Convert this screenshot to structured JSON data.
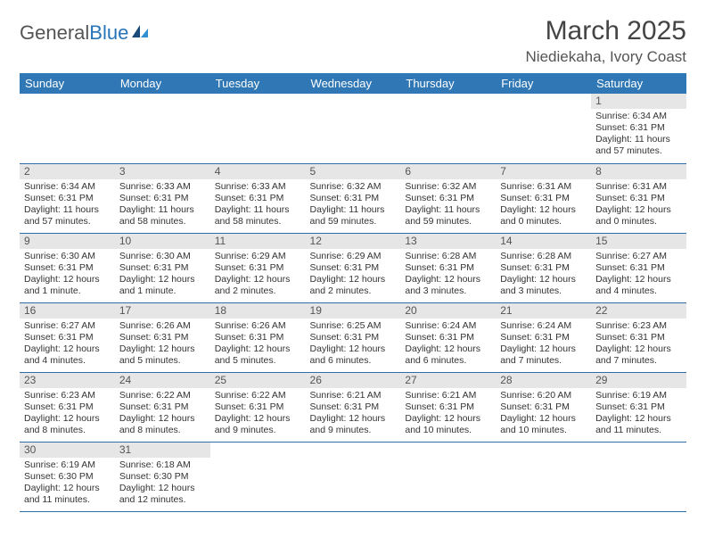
{
  "logo": {
    "text1": "General",
    "text2": "Blue"
  },
  "title": "March 2025",
  "location": "Niediekaha, Ivory Coast",
  "colors": {
    "header_bg": "#2f77b5",
    "header_text": "#ffffff",
    "daynum_bg": "#e6e6e6",
    "border": "#2f6fa8",
    "logo_blue": "#2874b8"
  },
  "weekdays": [
    "Sunday",
    "Monday",
    "Tuesday",
    "Wednesday",
    "Thursday",
    "Friday",
    "Saturday"
  ],
  "weeks": [
    [
      {
        "n": "",
        "empty": true
      },
      {
        "n": "",
        "empty": true
      },
      {
        "n": "",
        "empty": true
      },
      {
        "n": "",
        "empty": true
      },
      {
        "n": "",
        "empty": true
      },
      {
        "n": "",
        "empty": true
      },
      {
        "n": "1",
        "sr": "Sunrise: 6:34 AM",
        "ss": "Sunset: 6:31 PM",
        "dl": "Daylight: 11 hours and 57 minutes."
      }
    ],
    [
      {
        "n": "2",
        "sr": "Sunrise: 6:34 AM",
        "ss": "Sunset: 6:31 PM",
        "dl": "Daylight: 11 hours and 57 minutes."
      },
      {
        "n": "3",
        "sr": "Sunrise: 6:33 AM",
        "ss": "Sunset: 6:31 PM",
        "dl": "Daylight: 11 hours and 58 minutes."
      },
      {
        "n": "4",
        "sr": "Sunrise: 6:33 AM",
        "ss": "Sunset: 6:31 PM",
        "dl": "Daylight: 11 hours and 58 minutes."
      },
      {
        "n": "5",
        "sr": "Sunrise: 6:32 AM",
        "ss": "Sunset: 6:31 PM",
        "dl": "Daylight: 11 hours and 59 minutes."
      },
      {
        "n": "6",
        "sr": "Sunrise: 6:32 AM",
        "ss": "Sunset: 6:31 PM",
        "dl": "Daylight: 11 hours and 59 minutes."
      },
      {
        "n": "7",
        "sr": "Sunrise: 6:31 AM",
        "ss": "Sunset: 6:31 PM",
        "dl": "Daylight: 12 hours and 0 minutes."
      },
      {
        "n": "8",
        "sr": "Sunrise: 6:31 AM",
        "ss": "Sunset: 6:31 PM",
        "dl": "Daylight: 12 hours and 0 minutes."
      }
    ],
    [
      {
        "n": "9",
        "sr": "Sunrise: 6:30 AM",
        "ss": "Sunset: 6:31 PM",
        "dl": "Daylight: 12 hours and 1 minute."
      },
      {
        "n": "10",
        "sr": "Sunrise: 6:30 AM",
        "ss": "Sunset: 6:31 PM",
        "dl": "Daylight: 12 hours and 1 minute."
      },
      {
        "n": "11",
        "sr": "Sunrise: 6:29 AM",
        "ss": "Sunset: 6:31 PM",
        "dl": "Daylight: 12 hours and 2 minutes."
      },
      {
        "n": "12",
        "sr": "Sunrise: 6:29 AM",
        "ss": "Sunset: 6:31 PM",
        "dl": "Daylight: 12 hours and 2 minutes."
      },
      {
        "n": "13",
        "sr": "Sunrise: 6:28 AM",
        "ss": "Sunset: 6:31 PM",
        "dl": "Daylight: 12 hours and 3 minutes."
      },
      {
        "n": "14",
        "sr": "Sunrise: 6:28 AM",
        "ss": "Sunset: 6:31 PM",
        "dl": "Daylight: 12 hours and 3 minutes."
      },
      {
        "n": "15",
        "sr": "Sunrise: 6:27 AM",
        "ss": "Sunset: 6:31 PM",
        "dl": "Daylight: 12 hours and 4 minutes."
      }
    ],
    [
      {
        "n": "16",
        "sr": "Sunrise: 6:27 AM",
        "ss": "Sunset: 6:31 PM",
        "dl": "Daylight: 12 hours and 4 minutes."
      },
      {
        "n": "17",
        "sr": "Sunrise: 6:26 AM",
        "ss": "Sunset: 6:31 PM",
        "dl": "Daylight: 12 hours and 5 minutes."
      },
      {
        "n": "18",
        "sr": "Sunrise: 6:26 AM",
        "ss": "Sunset: 6:31 PM",
        "dl": "Daylight: 12 hours and 5 minutes."
      },
      {
        "n": "19",
        "sr": "Sunrise: 6:25 AM",
        "ss": "Sunset: 6:31 PM",
        "dl": "Daylight: 12 hours and 6 minutes."
      },
      {
        "n": "20",
        "sr": "Sunrise: 6:24 AM",
        "ss": "Sunset: 6:31 PM",
        "dl": "Daylight: 12 hours and 6 minutes."
      },
      {
        "n": "21",
        "sr": "Sunrise: 6:24 AM",
        "ss": "Sunset: 6:31 PM",
        "dl": "Daylight: 12 hours and 7 minutes."
      },
      {
        "n": "22",
        "sr": "Sunrise: 6:23 AM",
        "ss": "Sunset: 6:31 PM",
        "dl": "Daylight: 12 hours and 7 minutes."
      }
    ],
    [
      {
        "n": "23",
        "sr": "Sunrise: 6:23 AM",
        "ss": "Sunset: 6:31 PM",
        "dl": "Daylight: 12 hours and 8 minutes."
      },
      {
        "n": "24",
        "sr": "Sunrise: 6:22 AM",
        "ss": "Sunset: 6:31 PM",
        "dl": "Daylight: 12 hours and 8 minutes."
      },
      {
        "n": "25",
        "sr": "Sunrise: 6:22 AM",
        "ss": "Sunset: 6:31 PM",
        "dl": "Daylight: 12 hours and 9 minutes."
      },
      {
        "n": "26",
        "sr": "Sunrise: 6:21 AM",
        "ss": "Sunset: 6:31 PM",
        "dl": "Daylight: 12 hours and 9 minutes."
      },
      {
        "n": "27",
        "sr": "Sunrise: 6:21 AM",
        "ss": "Sunset: 6:31 PM",
        "dl": "Daylight: 12 hours and 10 minutes."
      },
      {
        "n": "28",
        "sr": "Sunrise: 6:20 AM",
        "ss": "Sunset: 6:31 PM",
        "dl": "Daylight: 12 hours and 10 minutes."
      },
      {
        "n": "29",
        "sr": "Sunrise: 6:19 AM",
        "ss": "Sunset: 6:31 PM",
        "dl": "Daylight: 12 hours and 11 minutes."
      }
    ],
    [
      {
        "n": "30",
        "sr": "Sunrise: 6:19 AM",
        "ss": "Sunset: 6:30 PM",
        "dl": "Daylight: 12 hours and 11 minutes."
      },
      {
        "n": "31",
        "sr": "Sunrise: 6:18 AM",
        "ss": "Sunset: 6:30 PM",
        "dl": "Daylight: 12 hours and 12 minutes."
      },
      {
        "n": "",
        "empty": true
      },
      {
        "n": "",
        "empty": true
      },
      {
        "n": "",
        "empty": true
      },
      {
        "n": "",
        "empty": true
      },
      {
        "n": "",
        "empty": true
      }
    ]
  ]
}
